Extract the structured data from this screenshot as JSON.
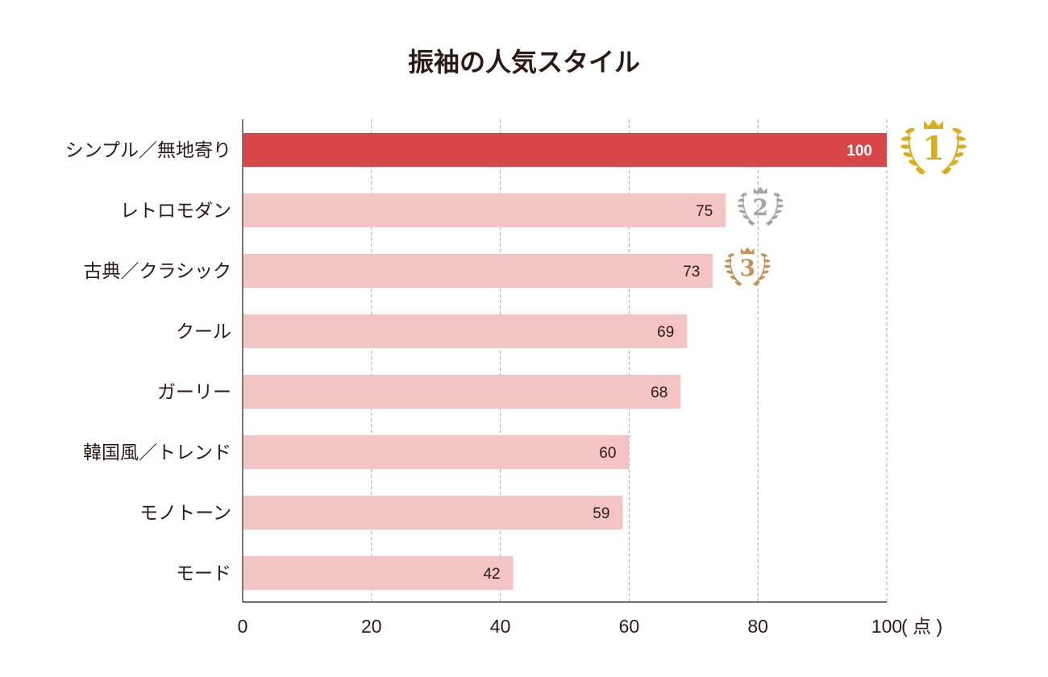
{
  "chart_data": {
    "type": "bar",
    "orientation": "horizontal",
    "title": "振袖の人気スタイル",
    "categories": [
      "シンプル／無地寄り",
      "レトロモダン",
      "古典／クラシック",
      "クール",
      "ガーリー",
      "韓国風／トレンド",
      "モノトーン",
      "モード"
    ],
    "values": [
      100,
      75,
      73,
      69,
      68,
      60,
      59,
      42
    ],
    "xlim": [
      0,
      100
    ],
    "xticks": [
      "0",
      "20",
      "40",
      "60",
      "80",
      "100"
    ],
    "xunit": "( 点 )",
    "grid": "vertical dashed",
    "rank_badges": [
      {
        "rank": "1",
        "color": "#d9ae1e"
      },
      {
        "rank": "2",
        "color": "#a3a3a3"
      },
      {
        "rank": "3",
        "color": "#c3915a"
      }
    ],
    "colors": {
      "top": "#d9464a",
      "other": "#f4c4c4",
      "text": "#2b1a17",
      "top_label": "#ffffff"
    }
  }
}
